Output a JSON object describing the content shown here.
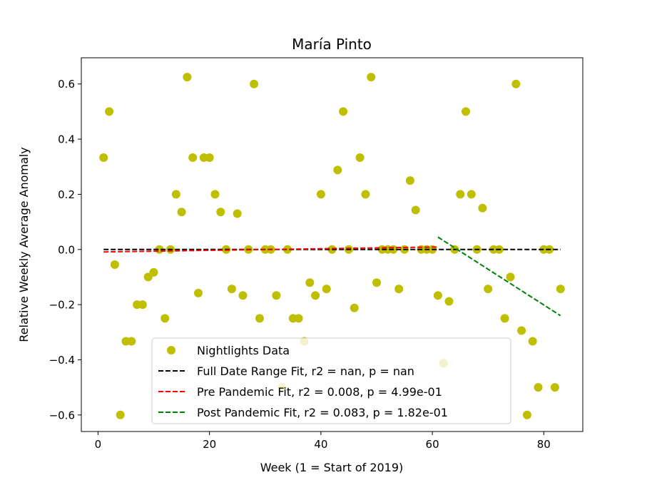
{
  "chart_data": {
    "type": "scatter",
    "title": "María Pinto",
    "xlabel": "Week (1 = Start of 2019)",
    "ylabel": "Relative Weekly Average Anomaly",
    "xlim": [
      -3,
      87
    ],
    "ylim": [
      -0.66,
      0.695
    ],
    "x_ticks": [
      0,
      20,
      40,
      60,
      80
    ],
    "x_tick_labels": [
      "0",
      "20",
      "40",
      "60",
      "80"
    ],
    "y_ticks": [
      -0.6,
      -0.4,
      -0.2,
      0.0,
      0.2,
      0.4,
      0.6
    ],
    "y_tick_labels": [
      "−0.6",
      "−0.4",
      "−0.2",
      "0.0",
      "0.2",
      "0.4",
      "0.6"
    ],
    "grid": false,
    "legend_position": "lower-center",
    "series": [
      {
        "name": "Nightlights Data",
        "kind": "scatter",
        "color": "#bfbf00",
        "points": [
          [
            1,
            0.333
          ],
          [
            2,
            0.5
          ],
          [
            3,
            -0.055
          ],
          [
            4,
            -0.6
          ],
          [
            5,
            -0.333
          ],
          [
            6,
            -0.333
          ],
          [
            7,
            -0.2
          ],
          [
            8,
            -0.2
          ],
          [
            9,
            -0.1
          ],
          [
            10,
            -0.083
          ],
          [
            11,
            0.0
          ],
          [
            12,
            -0.25
          ],
          [
            13,
            0.0
          ],
          [
            14,
            0.2
          ],
          [
            15,
            0.136
          ],
          [
            16,
            0.625
          ],
          [
            17,
            0.333
          ],
          [
            18,
            -0.158
          ],
          [
            19,
            0.333
          ],
          [
            20,
            0.333
          ],
          [
            21,
            0.2
          ],
          [
            22,
            0.136
          ],
          [
            23,
            0.0
          ],
          [
            24,
            -0.143
          ],
          [
            25,
            0.13
          ],
          [
            26,
            -0.167
          ],
          [
            27,
            0.0
          ],
          [
            28,
            0.6
          ],
          [
            29,
            -0.25
          ],
          [
            30,
            0.0
          ],
          [
            31,
            0.0
          ],
          [
            32,
            -0.167
          ],
          [
            33,
            -0.5
          ],
          [
            34,
            0.0
          ],
          [
            35,
            -0.25
          ],
          [
            36,
            -0.25
          ],
          [
            37,
            -0.333
          ],
          [
            38,
            -0.12
          ],
          [
            39,
            -0.167
          ],
          [
            40,
            0.2
          ],
          [
            41,
            -0.143
          ],
          [
            42,
            0.0
          ],
          [
            43,
            0.288
          ],
          [
            44,
            0.5
          ],
          [
            45,
            0.0
          ],
          [
            46,
            -0.212
          ],
          [
            47,
            0.333
          ],
          [
            48,
            0.2
          ],
          [
            49,
            0.625
          ],
          [
            50,
            -0.12
          ],
          [
            51,
            0.0
          ],
          [
            52,
            0.0
          ],
          [
            53,
            0.0
          ],
          [
            54,
            -0.143
          ],
          [
            55,
            0.0
          ],
          [
            56,
            0.25
          ],
          [
            57,
            0.143
          ],
          [
            58,
            0.0
          ],
          [
            59,
            0.0
          ],
          [
            60,
            0.0
          ],
          [
            61,
            -0.167
          ],
          [
            62,
            -0.412
          ],
          [
            63,
            -0.188
          ],
          [
            64,
            0.0
          ],
          [
            65,
            0.2
          ],
          [
            66,
            0.5
          ],
          [
            67,
            0.2
          ],
          [
            68,
            0.0
          ],
          [
            69,
            0.15
          ],
          [
            70,
            -0.143
          ],
          [
            71,
            0.0
          ],
          [
            72,
            0.0
          ],
          [
            73,
            -0.25
          ],
          [
            74,
            -0.1
          ],
          [
            75,
            0.6
          ],
          [
            76,
            -0.294
          ],
          [
            77,
            -0.6
          ],
          [
            78,
            -0.333
          ],
          [
            79,
            -0.5
          ],
          [
            80,
            0.0
          ],
          [
            81,
            0.0
          ],
          [
            82,
            -0.5
          ],
          [
            83,
            -0.143
          ]
        ]
      },
      {
        "name": "Full Date Range Fit, r2 = nan, p = nan",
        "kind": "line",
        "color": "#000000",
        "dash": "dashed",
        "points": [
          [
            1,
            0.0
          ],
          [
            83,
            0.0
          ]
        ]
      },
      {
        "name": "Pre Pandemic Fit, r2 = 0.008, p = 4.99e-01",
        "kind": "line",
        "color": "#ff0000",
        "dash": "dashed",
        "points": [
          [
            1,
            -0.009
          ],
          [
            61,
            0.009
          ]
        ]
      },
      {
        "name": "Post Pandemic Fit, r2 = 0.083, p = 1.82e-01",
        "kind": "line",
        "color": "#008000",
        "dash": "dashed",
        "points": [
          [
            61,
            0.045
          ],
          [
            83,
            -0.24
          ]
        ]
      }
    ]
  }
}
